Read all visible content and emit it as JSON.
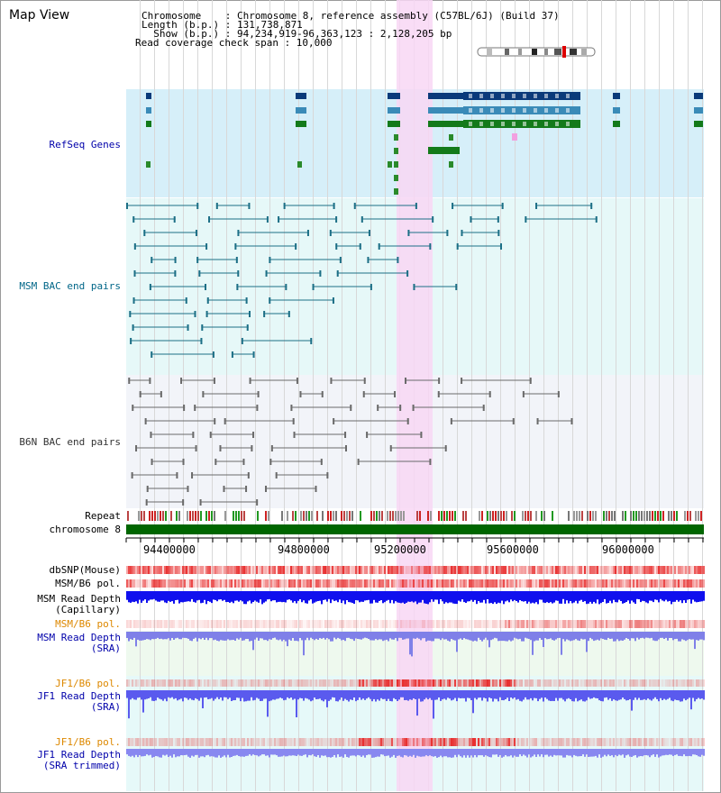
{
  "page": {
    "title": "Map View"
  },
  "info": {
    "chromosome_line": "Chromosome    : Chromosome 8, reference assembly (C57BL/6J) (Build 37)",
    "length_line": "Length (b.p.) : 131,738,871",
    "show_line": "  Show (b.p.) : 94,234,919-96,363,123 : 2,128,205 bp",
    "coverage_line": "Read coverage check span : 10,000"
  },
  "tracks": {
    "refseq": "RefSeq Genes",
    "msm_bac": "MSM BAC end pairs",
    "b6n_bac": "B6N BAC end pairs",
    "repeat": "Repeat",
    "chromosome": "chromosome 8",
    "dbsnp": "dbSNP(Mouse)",
    "msm_pol": "MSM/B6 pol.",
    "msm_depth_cap_1": "MSM Read Depth",
    "msm_depth_cap_2": "(Capillary)",
    "msm_pol2": "MSM/B6 pol.",
    "msm_depth_sra_1": "MSM Read Depth",
    "msm_depth_sra_2": "(SRA)",
    "jf1_pol": "JF1/B6 pol.",
    "jf1_depth_1": "JF1 Read Depth",
    "jf1_depth_2": "(SRA)",
    "jf1_pol2": "JF1/B6 pol.",
    "jf1_trim_1": "JF1 Read Depth",
    "jf1_trim_2": "(SRA trimmed)"
  },
  "axis": {
    "ticks": [
      "94400000",
      "94800000",
      "95200000",
      "95600000",
      "96000000"
    ]
  },
  "colors": {
    "refseq_bg": "#d6eff9",
    "msm_bg": "#e6f8f8",
    "b6n_bg": "#f2f4f9",
    "highlight": "#f8d7f4",
    "chromosome": "#006600",
    "label_blue": "#0000aa",
    "label_teal": "#006688",
    "label_orange": "#dd8800"
  }
}
